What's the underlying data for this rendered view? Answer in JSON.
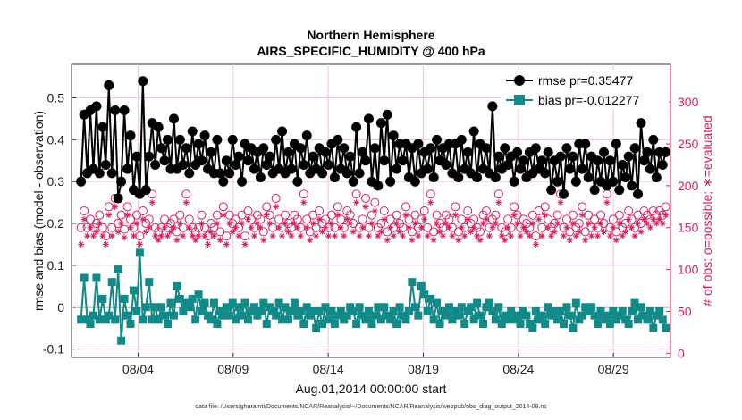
{
  "chart_data": {
    "type": "line",
    "title": "Northern Hemisphere",
    "subtitle": "AIRS_SPECIFIC_HUMIDITY @ 400 hPa",
    "xlabel": "Aug.01,2014 00:00:00 start",
    "ylabel": "rmse and bias (model - observation)",
    "ylabel_right": "# of obs: o=possible; ∗=evaluated",
    "xlim": [
      0.5,
      32
    ],
    "ylim": [
      -0.12,
      0.58
    ],
    "ylim_right": [
      -5,
      345
    ],
    "x_ticks": [
      4,
      9,
      14,
      19,
      24,
      29
    ],
    "x_tick_labels": [
      "08/04",
      "08/09",
      "08/14",
      "08/19",
      "08/24",
      "08/29"
    ],
    "y_ticks": [
      -0.1,
      0,
      0.1,
      0.2,
      0.3,
      0.4,
      0.5
    ],
    "y_tick_labels": [
      "-0.1",
      "0",
      "0.1",
      "0.2",
      "0.3",
      "0.4",
      "0.5"
    ],
    "y_right_ticks": [
      0,
      50,
      100,
      150,
      200,
      250,
      300
    ],
    "y_right_tick_labels": [
      "0",
      "50",
      "100",
      "150",
      "200",
      "250",
      "300"
    ],
    "grid": true,
    "legend_position": "top-right",
    "series": [
      {
        "name": "rmse pr=0.35477",
        "color": "#000000",
        "marker": "circle",
        "values": [
          0.3,
          0.46,
          0.32,
          0.47,
          0.33,
          0.48,
          0.32,
          0.43,
          0.34,
          0.53,
          0.32,
          0.47,
          0.26,
          0.3,
          0.47,
          0.33,
          0.41,
          0.28,
          0.36,
          0.27,
          0.54,
          0.28,
          0.36,
          0.44,
          0.34,
          0.43,
          0.38,
          0.35,
          0.4,
          0.33,
          0.45,
          0.33,
          0.4,
          0.34,
          0.38,
          0.32,
          0.42,
          0.34,
          0.39,
          0.35,
          0.41,
          0.33,
          0.37,
          0.32,
          0.4,
          0.32,
          0.3,
          0.35,
          0.32,
          0.4,
          0.34,
          0.36,
          0.3,
          0.39,
          0.35,
          0.38,
          0.33,
          0.37,
          0.31,
          0.38,
          0.34,
          0.36,
          0.32,
          0.4,
          0.33,
          0.42,
          0.32,
          0.37,
          0.33,
          0.39,
          0.3,
          0.38,
          0.34,
          0.41,
          0.32,
          0.36,
          0.33,
          0.38,
          0.32,
          0.37,
          0.34,
          0.39,
          0.31,
          0.4,
          0.33,
          0.38,
          0.32,
          0.36,
          0.3,
          0.43,
          0.32,
          0.37,
          0.35,
          0.45,
          0.3,
          0.38,
          0.29,
          0.44,
          0.35,
          0.46,
          0.3,
          0.41,
          0.33,
          0.39,
          0.35,
          0.39,
          0.31,
          0.38,
          0.3,
          0.39,
          0.32,
          0.37,
          0.33,
          0.38,
          0.31,
          0.4,
          0.35,
          0.38,
          0.34,
          0.39,
          0.32,
          0.39,
          0.31,
          0.4,
          0.33,
          0.37,
          0.32,
          0.42,
          0.31,
          0.39,
          0.33,
          0.38,
          0.32,
          0.48,
          0.31,
          0.36,
          0.33,
          0.38,
          0.34,
          0.36,
          0.3,
          0.37,
          0.33,
          0.35,
          0.31,
          0.37,
          0.32,
          0.38,
          0.33,
          0.35,
          0.32,
          0.37,
          0.28,
          0.35,
          0.3,
          0.36,
          0.27,
          0.38,
          0.33,
          0.36,
          0.3,
          0.39,
          0.33,
          0.39,
          0.31,
          0.36,
          0.28,
          0.35,
          0.3,
          0.37,
          0.29,
          0.35,
          0.3,
          0.39,
          0.28,
          0.34,
          0.31,
          0.36,
          0.29,
          0.38,
          0.27,
          0.44,
          0.35,
          0.37,
          0.33,
          0.4,
          0.31,
          0.37,
          0.34,
          0.37
        ]
      },
      {
        "name": "bias pr=-0.012277",
        "color": "#118a88",
        "marker": "square",
        "values": [
          -0.03,
          0.07,
          -0.03,
          -0.04,
          -0.02,
          0.07,
          -0.03,
          0.02,
          -0.03,
          -0.02,
          0.06,
          -0.03,
          0.09,
          -0.08,
          0.02,
          -0.02,
          -0.04,
          0.04,
          -0.01,
          0.13,
          -0.03,
          0.0,
          0.06,
          -0.03,
          0.0,
          -0.03,
          0.0,
          -0.02,
          -0.04,
          0.01,
          -0.02,
          0.05,
          0.02,
          -0.01,
          0.01,
          0.0,
          0.02,
          -0.03,
          0.03,
          -0.01,
          0.01,
          -0.02,
          -0.03,
          0.01,
          -0.04,
          -0.01,
          -0.02,
          0.0,
          -0.02,
          0.01,
          -0.03,
          0.0,
          -0.02,
          0.01,
          -0.03,
          -0.01,
          0.0,
          -0.02,
          -0.01,
          0.01,
          -0.04,
          0.0,
          -0.01,
          -0.02,
          0.01,
          -0.03,
          0.0,
          -0.03,
          -0.01,
          0.01,
          -0.02,
          -0.01,
          -0.04,
          0.0,
          -0.02,
          -0.01,
          -0.05,
          -0.01,
          -0.04,
          0.0,
          -0.03,
          -0.01,
          -0.04,
          -0.02,
          -0.01,
          -0.03,
          -0.02,
          0.0,
          -0.01,
          -0.04,
          0.0,
          -0.02,
          -0.03,
          -0.01,
          -0.04,
          -0.02,
          0.0,
          -0.03,
          0.0,
          -0.02,
          -0.03,
          -0.01,
          -0.04,
          0.0,
          -0.02,
          -0.03,
          -0.01,
          0.06,
          0.0,
          -0.02,
          0.05,
          0.03,
          -0.01,
          0.02,
          -0.03,
          0.01,
          -0.04,
          -0.01,
          -0.02,
          0.0,
          -0.03,
          -0.01,
          -0.02,
          0.0,
          -0.04,
          -0.01,
          0.0,
          -0.03,
          0.01,
          -0.02,
          -0.04,
          0.0,
          0.01,
          -0.01,
          -0.03,
          0.0,
          -0.04,
          -0.02,
          -0.03,
          -0.01,
          -0.03,
          -0.02,
          -0.04,
          -0.01,
          -0.02,
          -0.04,
          -0.05,
          -0.01,
          -0.03,
          -0.02,
          -0.04,
          0.0,
          -0.02,
          -0.01,
          -0.03,
          -0.01,
          -0.04,
          0.0,
          -0.02,
          -0.05,
          0.01,
          -0.03,
          -0.02,
          0.0,
          -0.01,
          0.0,
          -0.02,
          -0.04,
          -0.01,
          -0.03,
          -0.02,
          -0.04,
          -0.01,
          -0.03,
          -0.02,
          -0.01,
          -0.03,
          -0.04,
          -0.01,
          0.01,
          -0.03,
          0.0,
          -0.02,
          -0.03,
          -0.01,
          -0.05,
          -0.02,
          -0.01,
          -0.03,
          -0.05
        ]
      },
      {
        "name": "# of obs possible",
        "color": "#d6205e",
        "marker": "open-circle",
        "axis": "right",
        "values": [
          150,
          170,
          150,
          160,
          150,
          155,
          165,
          150,
          140,
          175,
          150,
          185,
          155,
          165,
          148,
          175,
          160,
          150,
          165,
          140,
          170,
          155,
          160,
          190,
          150,
          145,
          150,
          160,
          150,
          155,
          160,
          145,
          165,
          150,
          190,
          160,
          150,
          145,
          150,
          165,
          150,
          140,
          155,
          150,
          165,
          145,
          175,
          140,
          165,
          155,
          160,
          150,
          165,
          140,
          170,
          160,
          150,
          165,
          160,
          145,
          175,
          165,
          150,
          185,
          160,
          150,
          165,
          155,
          150,
          165,
          160,
          150,
          190,
          160,
          145,
          165,
          150,
          170,
          155,
          160,
          150,
          165,
          150,
          175,
          160,
          150,
          170,
          165,
          155,
          190,
          150,
          160,
          185,
          150,
          165,
          180,
          150,
          155,
          170,
          145,
          160,
          150,
          165,
          155,
          150,
          175,
          160,
          145,
          165,
          150,
          160,
          170,
          150,
          190,
          145,
          165,
          155,
          150,
          165,
          160,
          150,
          175,
          145,
          160,
          150,
          170,
          155,
          160,
          150,
          145,
          165,
          170,
          150,
          160,
          165,
          190,
          150,
          145,
          160,
          150,
          175,
          165,
          150,
          160,
          155,
          150,
          165,
          140,
          170,
          150,
          175,
          160,
          150,
          155,
          165,
          190,
          150,
          160,
          145,
          165,
          150,
          155,
          175,
          145,
          165,
          150,
          160,
          150,
          165,
          155,
          190,
          150,
          160,
          145,
          165,
          150,
          155,
          170,
          160,
          150,
          165,
          155,
          170,
          165,
          160,
          170,
          165,
          170,
          165,
          175
        ]
      },
      {
        "name": "# of obs evaluated",
        "color": "#d6205e",
        "marker": "asterisk",
        "axis": "right",
        "values": [
          130,
          160,
          140,
          150,
          140,
          145,
          155,
          140,
          130,
          165,
          140,
          175,
          145,
          155,
          138,
          165,
          150,
          140,
          155,
          130,
          160,
          145,
          150,
          180,
          140,
          135,
          140,
          150,
          140,
          145,
          150,
          135,
          155,
          140,
          180,
          150,
          140,
          135,
          140,
          155,
          140,
          130,
          145,
          140,
          155,
          135,
          165,
          130,
          155,
          145,
          150,
          140,
          155,
          130,
          160,
          150,
          140,
          155,
          150,
          135,
          165,
          155,
          140,
          175,
          150,
          140,
          155,
          145,
          140,
          155,
          150,
          140,
          180,
          150,
          135,
          155,
          140,
          160,
          145,
          150,
          140,
          155,
          140,
          165,
          150,
          140,
          160,
          155,
          145,
          180,
          140,
          150,
          175,
          140,
          155,
          170,
          140,
          145,
          160,
          135,
          150,
          140,
          155,
          145,
          140,
          165,
          150,
          135,
          155,
          140,
          150,
          160,
          140,
          180,
          135,
          155,
          145,
          140,
          155,
          150,
          140,
          165,
          135,
          150,
          140,
          160,
          145,
          150,
          140,
          135,
          155,
          160,
          140,
          150,
          155,
          180,
          140,
          135,
          150,
          140,
          165,
          155,
          140,
          150,
          145,
          140,
          155,
          130,
          160,
          140,
          165,
          150,
          140,
          145,
          155,
          180,
          140,
          150,
          135,
          155,
          140,
          145,
          165,
          135,
          155,
          140,
          150,
          140,
          155,
          145,
          180,
          140,
          150,
          135,
          155,
          140,
          145,
          160,
          150,
          140,
          155,
          145,
          160,
          155,
          150,
          160,
          155,
          160,
          155,
          165
        ]
      }
    ],
    "footnote": "data file: /Users/gharamti/Documents/NCAR/Reanalysis/~/Documents/NCAR/Reanalysis/webpub/obs_diag_output_2014-08.nc"
  }
}
